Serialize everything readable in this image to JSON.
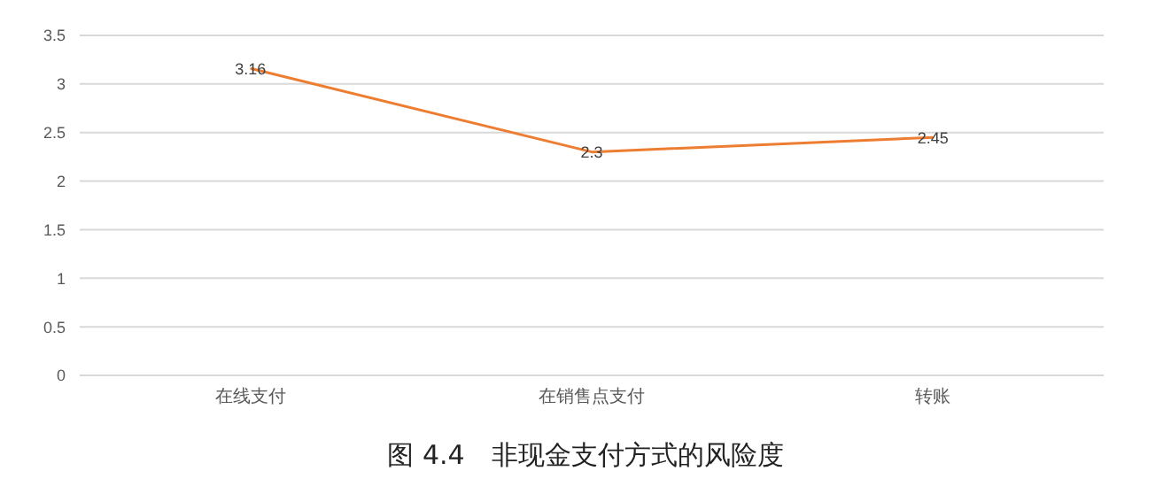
{
  "chart_data": {
    "type": "line",
    "title": "图 4.4　非现金支付方式的风险度",
    "categories": [
      "在线支付",
      "在销售点支付",
      "转账"
    ],
    "values": [
      3.16,
      2.3,
      2.45
    ],
    "color": "#ed7d31",
    "ylim": [
      0,
      3.5
    ],
    "yticks": [
      0,
      0.5,
      1,
      1.5,
      2,
      2.5,
      3,
      3.5
    ],
    "grid": "y",
    "marker": "none",
    "line_style": "solid",
    "data_labels": true
  }
}
